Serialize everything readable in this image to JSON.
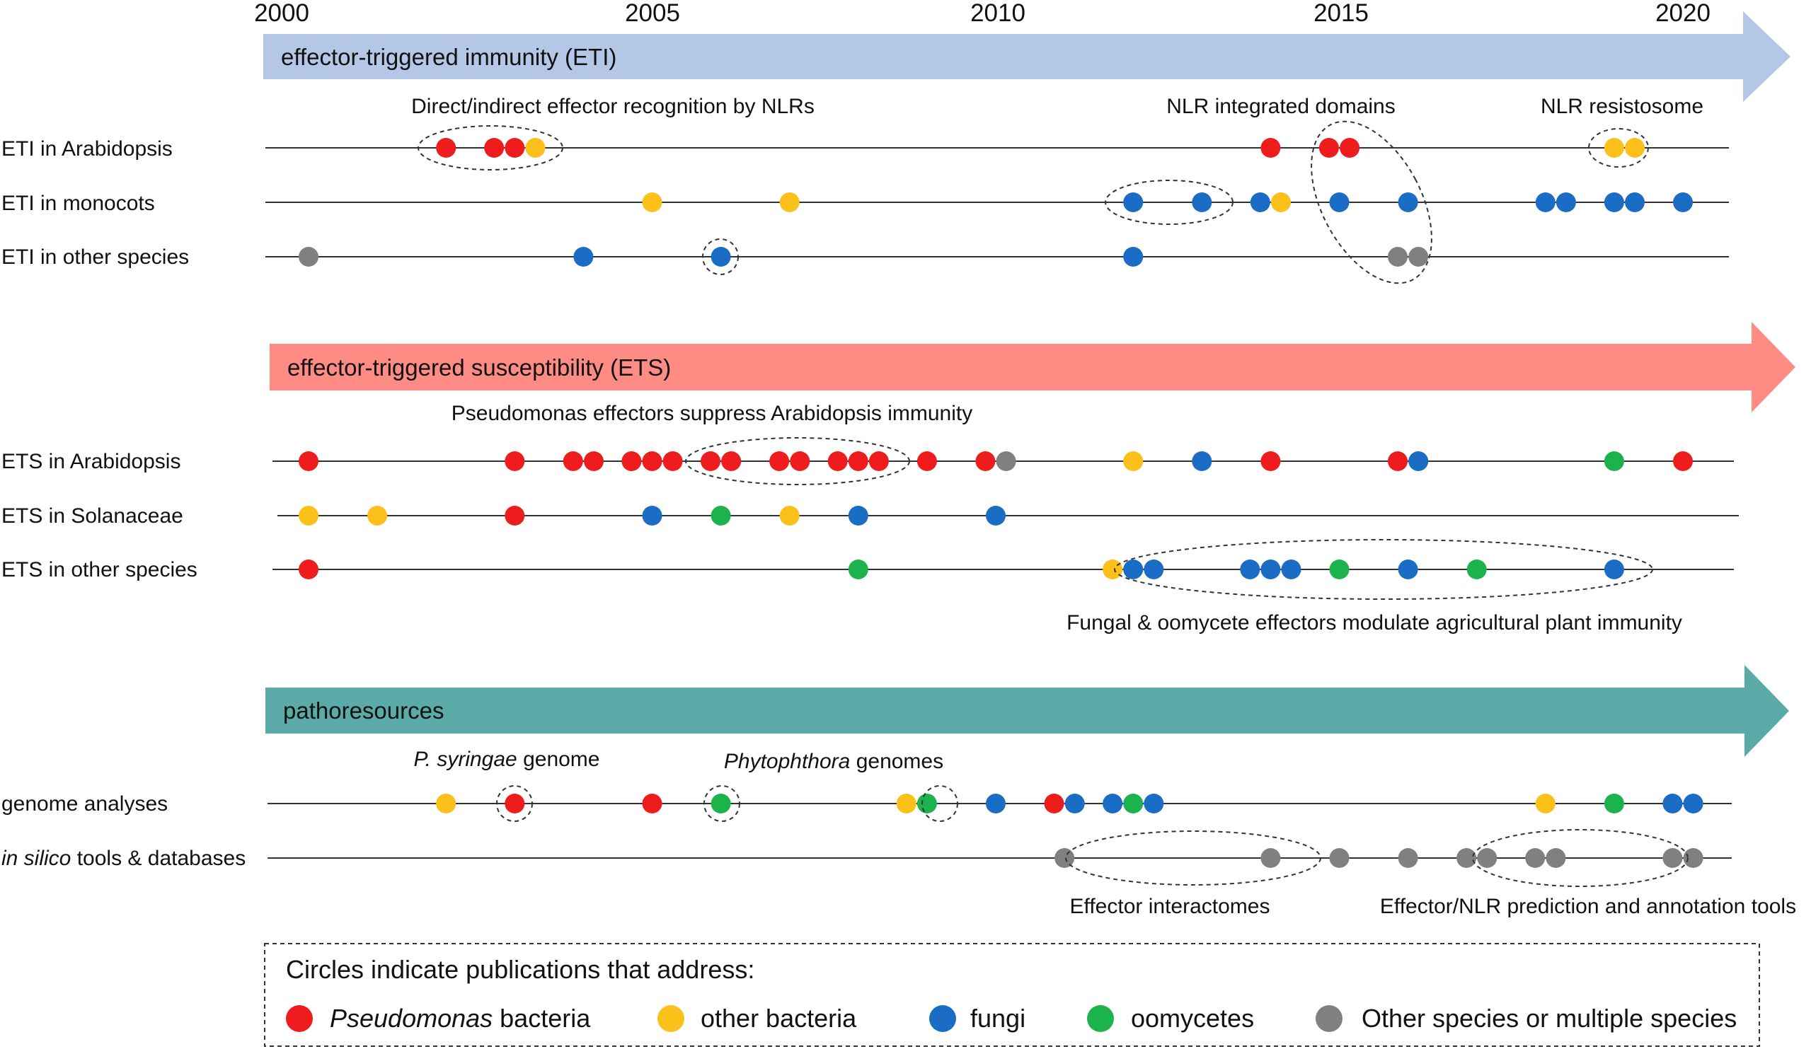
{
  "colors": {
    "pseudomonas": "#ee1c1c",
    "other_bacteria": "#fbc01a",
    "fungi": "#1a6cc4",
    "oomycetes": "#1cb34d",
    "other": "#808080",
    "eti_band": "#b4c7e7",
    "ets_band": "#ff8b85",
    "patho_band": "#5aaaa8"
  },
  "axis": {
    "years": [
      "2000",
      "2005",
      "2010",
      "2015",
      "2020"
    ],
    "year_values": [
      2000,
      2005,
      2010,
      2015,
      2020
    ]
  },
  "bands": {
    "eti": "effector-triggered immunity (ETI)",
    "ets": "effector-triggered susceptibility (ETS)",
    "patho": "pathoresources"
  },
  "rows": [
    {
      "label": "ETI in Arabidopsis",
      "dots": [
        {
          "year": 2002.0,
          "cat": "pseudomonas"
        },
        {
          "year": 2002.7,
          "cat": "pseudomonas"
        },
        {
          "year": 2003.0,
          "cat": "pseudomonas"
        },
        {
          "year": 2003.3,
          "cat": "other_bacteria"
        },
        {
          "year": 2014.0,
          "cat": "pseudomonas"
        },
        {
          "year": 2014.85,
          "cat": "pseudomonas"
        },
        {
          "year": 2015.15,
          "cat": "pseudomonas"
        },
        {
          "year": 2019.0,
          "cat": "other_bacteria"
        },
        {
          "year": 2019.3,
          "cat": "other_bacteria"
        }
      ]
    },
    {
      "label": "ETI in monocots",
      "dots": [
        {
          "year": 2005.0,
          "cat": "other_bacteria"
        },
        {
          "year": 2007.0,
          "cat": "other_bacteria"
        },
        {
          "year": 2012.0,
          "cat": "fungi"
        },
        {
          "year": 2013.0,
          "cat": "fungi"
        },
        {
          "year": 2013.85,
          "cat": "fungi"
        },
        {
          "year": 2014.15,
          "cat": "other_bacteria"
        },
        {
          "year": 2015.0,
          "cat": "fungi"
        },
        {
          "year": 2016.0,
          "cat": "fungi"
        },
        {
          "year": 2018.0,
          "cat": "fungi"
        },
        {
          "year": 2018.3,
          "cat": "fungi"
        },
        {
          "year": 2019.0,
          "cat": "fungi"
        },
        {
          "year": 2019.3,
          "cat": "fungi"
        },
        {
          "year": 2020.0,
          "cat": "fungi"
        }
      ]
    },
    {
      "label": "ETI in other species",
      "dots": [
        {
          "year": 2000.0,
          "cat": "other"
        },
        {
          "year": 2004.0,
          "cat": "fungi"
        },
        {
          "year": 2006.0,
          "cat": "fungi"
        },
        {
          "year": 2012.0,
          "cat": "fungi"
        },
        {
          "year": 2015.85,
          "cat": "other"
        },
        {
          "year": 2016.15,
          "cat": "other"
        }
      ]
    },
    {
      "label": "ETS in Arabidopsis",
      "dots": [
        {
          "year": 2000.0,
          "cat": "pseudomonas"
        },
        {
          "year": 2003.0,
          "cat": "pseudomonas"
        },
        {
          "year": 2003.85,
          "cat": "pseudomonas"
        },
        {
          "year": 2004.15,
          "cat": "pseudomonas"
        },
        {
          "year": 2004.7,
          "cat": "pseudomonas"
        },
        {
          "year": 2005.0,
          "cat": "pseudomonas"
        },
        {
          "year": 2005.3,
          "cat": "pseudomonas"
        },
        {
          "year": 2005.85,
          "cat": "pseudomonas"
        },
        {
          "year": 2006.15,
          "cat": "pseudomonas"
        },
        {
          "year": 2006.85,
          "cat": "pseudomonas"
        },
        {
          "year": 2007.15,
          "cat": "pseudomonas"
        },
        {
          "year": 2007.7,
          "cat": "pseudomonas"
        },
        {
          "year": 2008.0,
          "cat": "pseudomonas"
        },
        {
          "year": 2008.3,
          "cat": "pseudomonas"
        },
        {
          "year": 2009.0,
          "cat": "pseudomonas"
        },
        {
          "year": 2009.85,
          "cat": "pseudomonas"
        },
        {
          "year": 2010.15,
          "cat": "other"
        },
        {
          "year": 2012.0,
          "cat": "other_bacteria"
        },
        {
          "year": 2013.0,
          "cat": "fungi"
        },
        {
          "year": 2014.0,
          "cat": "pseudomonas"
        },
        {
          "year": 2015.85,
          "cat": "pseudomonas"
        },
        {
          "year": 2016.15,
          "cat": "fungi"
        },
        {
          "year": 2019.0,
          "cat": "oomycetes"
        },
        {
          "year": 2020.0,
          "cat": "pseudomonas"
        }
      ]
    },
    {
      "label": "ETS in Solanaceae",
      "dots": [
        {
          "year": 2000.0,
          "cat": "other_bacteria"
        },
        {
          "year": 2001.0,
          "cat": "other_bacteria"
        },
        {
          "year": 2003.0,
          "cat": "pseudomonas"
        },
        {
          "year": 2005.0,
          "cat": "fungi"
        },
        {
          "year": 2006.0,
          "cat": "oomycetes"
        },
        {
          "year": 2007.0,
          "cat": "other_bacteria"
        },
        {
          "year": 2008.0,
          "cat": "fungi"
        },
        {
          "year": 2010.0,
          "cat": "fungi"
        }
      ]
    },
    {
      "label": "ETS in other species",
      "dots": [
        {
          "year": 2000.0,
          "cat": "pseudomonas"
        },
        {
          "year": 2008.0,
          "cat": "oomycetes"
        },
        {
          "year": 2011.7,
          "cat": "other_bacteria"
        },
        {
          "year": 2012.0,
          "cat": "fungi"
        },
        {
          "year": 2012.3,
          "cat": "fungi"
        },
        {
          "year": 2013.7,
          "cat": "fungi"
        },
        {
          "year": 2014.0,
          "cat": "fungi"
        },
        {
          "year": 2014.3,
          "cat": "fungi"
        },
        {
          "year": 2015.0,
          "cat": "oomycetes"
        },
        {
          "year": 2016.0,
          "cat": "fungi"
        },
        {
          "year": 2017.0,
          "cat": "oomycetes"
        },
        {
          "year": 2019.0,
          "cat": "fungi"
        }
      ]
    },
    {
      "label": "genome analyses",
      "dots": [
        {
          "year": 2002.0,
          "cat": "other_bacteria"
        },
        {
          "year": 2003.0,
          "cat": "pseudomonas"
        },
        {
          "year": 2005.0,
          "cat": "pseudomonas"
        },
        {
          "year": 2006.0,
          "cat": "oomycetes"
        },
        {
          "year": 2008.7,
          "cat": "other_bacteria"
        },
        {
          "year": 2009.0,
          "cat": "oomycetes"
        },
        {
          "year": 2010.0,
          "cat": "fungi"
        },
        {
          "year": 2010.85,
          "cat": "pseudomonas"
        },
        {
          "year": 2011.15,
          "cat": "fungi"
        },
        {
          "year": 2011.7,
          "cat": "fungi"
        },
        {
          "year": 2012.0,
          "cat": "oomycetes"
        },
        {
          "year": 2012.3,
          "cat": "fungi"
        },
        {
          "year": 2018.0,
          "cat": "other_bacteria"
        },
        {
          "year": 2019.0,
          "cat": "oomycetes"
        },
        {
          "year": 2019.85,
          "cat": "fungi"
        },
        {
          "year": 2020.15,
          "cat": "fungi"
        }
      ]
    },
    {
      "label_italic": "in silico",
      "label_rest": " tools & databases",
      "dots": [
        {
          "year": 2011.0,
          "cat": "other"
        },
        {
          "year": 2014.0,
          "cat": "other"
        },
        {
          "year": 2015.0,
          "cat": "other"
        },
        {
          "year": 2016.0,
          "cat": "other"
        },
        {
          "year": 2016.85,
          "cat": "other"
        },
        {
          "year": 2017.15,
          "cat": "other"
        },
        {
          "year": 2017.85,
          "cat": "other"
        },
        {
          "year": 2018.15,
          "cat": "other"
        },
        {
          "year": 2019.85,
          "cat": "other"
        },
        {
          "year": 2020.15,
          "cat": "other"
        }
      ]
    }
  ],
  "annotations": {
    "direct_indirect": "Direct/indirect effector recognition by NLRs",
    "integrated_domains": "NLR integrated domains",
    "resistosome": "NLR resistosome",
    "pseudomonas_effectors": "Pseudomonas effectors suppress Arabidopsis immunity",
    "fungal_oomycete": "Fungal & oomycete effectors modulate agricultural plant immunity",
    "psyringae_italic": "P. syringae",
    "psyringae_rest": " genome",
    "phytophthora_italic": "Phytophthora",
    "phytophthora_rest": " genomes",
    "interactomes": "Effector interactomes",
    "prediction_tools": "Effector/NLR prediction and annotation tools"
  },
  "legend": {
    "title": "Circles indicate publications that address:",
    "pseudomonas_italic": "Pseudomonas",
    "pseudomonas_rest": " bacteria",
    "other_bacteria": "other bacteria",
    "fungi": "fungi",
    "oomycetes": "oomycetes",
    "other": "Other species or multiple species"
  }
}
